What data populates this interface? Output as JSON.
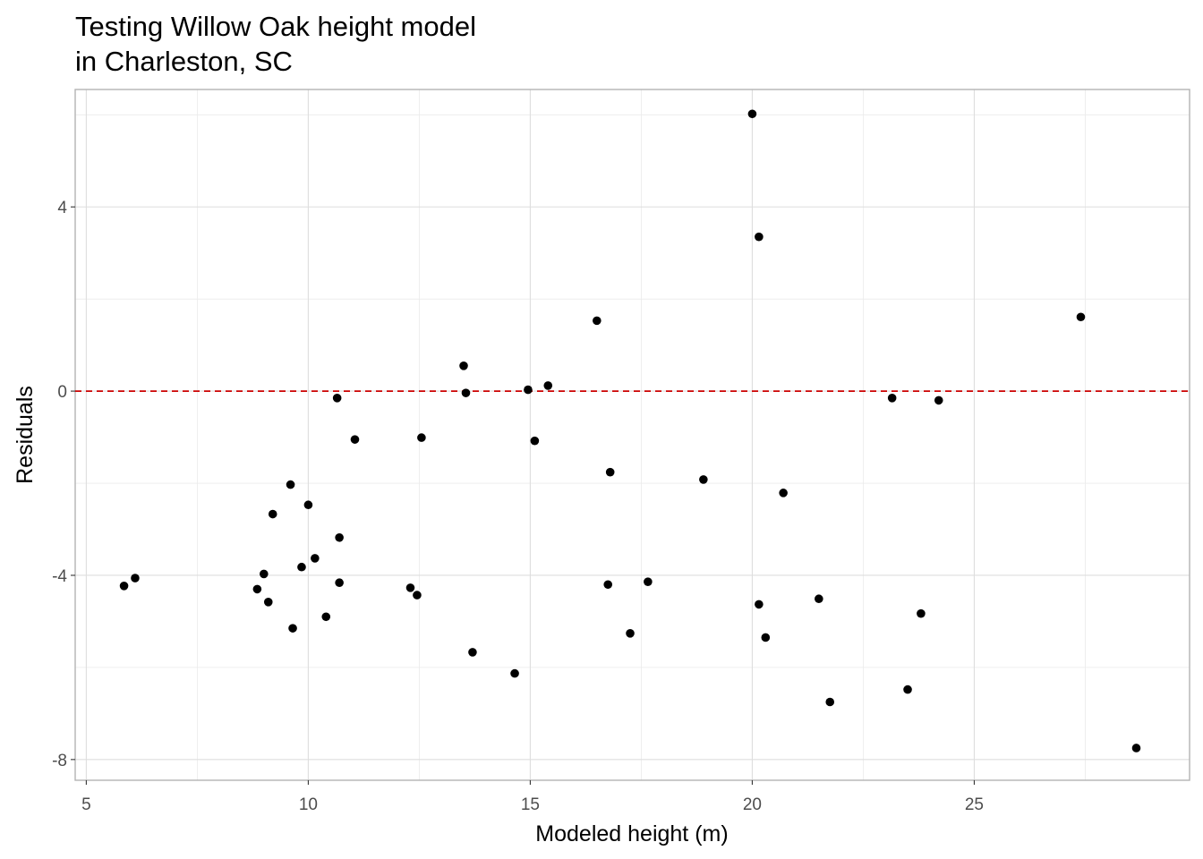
{
  "chart_data": {
    "type": "scatter",
    "title": [
      "Testing Willow Oak height model",
      "in Charleston, SC"
    ],
    "xlabel": "Modeled height (m)",
    "ylabel": "Residuals",
    "xlim": [
      4.75,
      29.85
    ],
    "ylim": [
      -8.45,
      6.55
    ],
    "x_ticks": [
      5,
      10,
      15,
      20,
      25
    ],
    "y_ticks": [
      -8,
      -4,
      0,
      4
    ],
    "x_tick_labels": [
      "5",
      "10",
      "15",
      "20",
      "25"
    ],
    "y_tick_labels": [
      "-8",
      "-4",
      "0",
      "4"
    ],
    "grid": true,
    "reference_line": {
      "y": 0,
      "style": "dashed",
      "color": "#cc0000"
    },
    "point_color": "#000000",
    "points": [
      {
        "x": 5.85,
        "y": -4.23
      },
      {
        "x": 6.1,
        "y": -4.06
      },
      {
        "x": 8.85,
        "y": -4.3
      },
      {
        "x": 9.0,
        "y": -3.97
      },
      {
        "x": 9.1,
        "y": -4.58
      },
      {
        "x": 9.2,
        "y": -2.67
      },
      {
        "x": 9.6,
        "y": -2.03
      },
      {
        "x": 9.65,
        "y": -5.15
      },
      {
        "x": 9.85,
        "y": -3.82
      },
      {
        "x": 10.0,
        "y": -2.47
      },
      {
        "x": 10.15,
        "y": -3.63
      },
      {
        "x": 10.4,
        "y": -4.9
      },
      {
        "x": 10.65,
        "y": -0.15
      },
      {
        "x": 10.7,
        "y": -3.18
      },
      {
        "x": 10.7,
        "y": -4.16
      },
      {
        "x": 11.05,
        "y": -1.05
      },
      {
        "x": 12.3,
        "y": -4.27
      },
      {
        "x": 12.45,
        "y": -4.43
      },
      {
        "x": 12.55,
        "y": -1.01
      },
      {
        "x": 13.5,
        "y": 0.55
      },
      {
        "x": 13.55,
        "y": -0.04
      },
      {
        "x": 13.7,
        "y": -5.67
      },
      {
        "x": 14.65,
        "y": -6.13
      },
      {
        "x": 14.95,
        "y": 0.03
      },
      {
        "x": 15.1,
        "y": -1.08
      },
      {
        "x": 15.4,
        "y": 0.12
      },
      {
        "x": 16.5,
        "y": 1.53
      },
      {
        "x": 16.75,
        "y": -4.2
      },
      {
        "x": 16.8,
        "y": -1.76
      },
      {
        "x": 17.25,
        "y": -5.26
      },
      {
        "x": 17.65,
        "y": -4.14
      },
      {
        "x": 18.9,
        "y": -1.92
      },
      {
        "x": 20.0,
        "y": 6.02
      },
      {
        "x": 20.15,
        "y": -4.63
      },
      {
        "x": 20.15,
        "y": 3.35
      },
      {
        "x": 20.3,
        "y": -5.35
      },
      {
        "x": 20.7,
        "y": -2.21
      },
      {
        "x": 21.5,
        "y": -4.51
      },
      {
        "x": 21.75,
        "y": -6.75
      },
      {
        "x": 23.15,
        "y": -0.15
      },
      {
        "x": 23.5,
        "y": -6.48
      },
      {
        "x": 23.8,
        "y": -4.83
      },
      {
        "x": 24.2,
        "y": -0.2
      },
      {
        "x": 27.4,
        "y": 1.61
      },
      {
        "x": 28.65,
        "y": -7.75
      }
    ]
  }
}
